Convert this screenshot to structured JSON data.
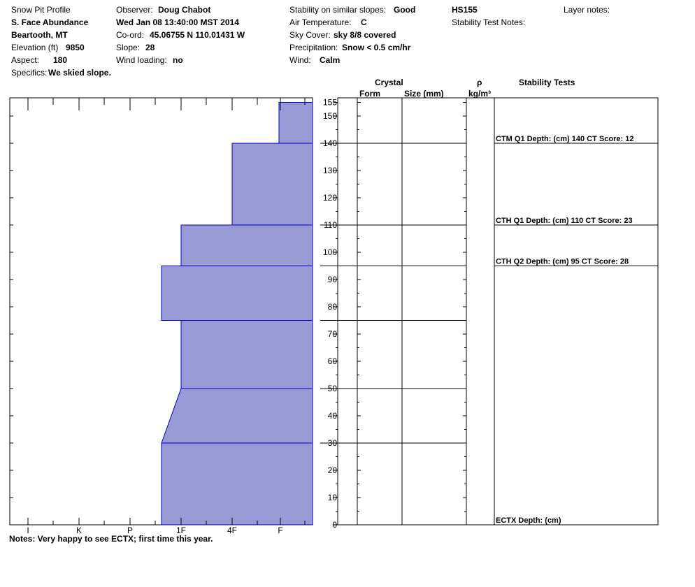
{
  "header": {
    "title": "Snow Pit Profile",
    "location": "S. Face Abundance",
    "region": "Beartooth, MT",
    "elevation_label": "Elevation (ft)",
    "elevation": "9850",
    "aspect_label": "Aspect:",
    "aspect": "180",
    "specifics_label": "Specifics:",
    "specifics": "We skied slope.",
    "observer_label": "Observer:",
    "observer": "Doug Chabot",
    "datetime": "Wed Jan 08 13:40:00 MST 2014",
    "coord_label": "Co-ord:",
    "coord": "45.06755 N 110.01431 W",
    "slope_label": "Slope:",
    "slope": "28",
    "wind_loading_label": "Wind loading:",
    "wind_loading": "no",
    "stability_label": "Stability on similar slopes:",
    "stability": "Good",
    "air_temp_label": "Air Temperature:",
    "air_temp": "C",
    "sky_label": "Sky Cover:",
    "sky": "sky 8/8 covered",
    "precip_label": "Precipitation:",
    "precip": "Snow < 0.5 cm/hr",
    "wind_label": "Wind:",
    "wind": "Calm",
    "hs": "HS155",
    "stability_notes_label": "Stability Test Notes:",
    "layer_notes_label": "Layer notes:"
  },
  "columns": {
    "crystal": "Crystal",
    "form": "Form",
    "size": "Size (mm)",
    "rho": "ρ",
    "density_unit": "kg/m³",
    "stability_tests": "Stability Tests"
  },
  "notes": "Notes:  Very happy to see ECTX; first time this year.",
  "chart_data": {
    "type": "area",
    "title": "",
    "xlabel": "",
    "ylabel": "",
    "hardness_labels": [
      "I",
      "K",
      "P",
      "1F",
      "4F",
      "F"
    ],
    "y_ticks": [
      0,
      10,
      20,
      30,
      40,
      50,
      60,
      70,
      80,
      90,
      100,
      110,
      120,
      130,
      140,
      150,
      155
    ],
    "ylim": [
      0,
      155
    ],
    "layers": [
      {
        "bottom": 0,
        "top": 30,
        "hardness_bottom": "1F-",
        "hardness_top": "1F-"
      },
      {
        "bottom": 30,
        "top": 50,
        "hardness_bottom": "1F-",
        "hardness_top": "1F"
      },
      {
        "bottom": 50,
        "top": 75,
        "hardness_bottom": "1F",
        "hardness_top": "1F"
      },
      {
        "bottom": 75,
        "top": 95,
        "hardness_bottom": "1F-",
        "hardness_top": "1F-"
      },
      {
        "bottom": 95,
        "top": 110,
        "hardness_bottom": "1F",
        "hardness_top": "1F"
      },
      {
        "bottom": 110,
        "top": 140,
        "hardness_bottom": "4F",
        "hardness_top": "4F"
      },
      {
        "bottom": 140,
        "top": 155,
        "hardness_bottom": "F+",
        "hardness_top": "F+"
      }
    ],
    "layer_boundaries": [
      30,
      50,
      75,
      95,
      110,
      140
    ],
    "stability_tests": [
      {
        "depth": 140,
        "text": "CTM Q1 Depth: (cm) 140 CT Score: 12"
      },
      {
        "depth": 110,
        "text": "CTH Q1 Depth: (cm) 110 CT Score: 23"
      },
      {
        "depth": 95,
        "text": "CTH Q2 Depth: (cm) 95 CT Score: 28"
      },
      {
        "depth": 0,
        "text": "ECTX   Depth: (cm)"
      }
    ],
    "fill_color": "#9999d6",
    "line_color": "#0000cc"
  }
}
